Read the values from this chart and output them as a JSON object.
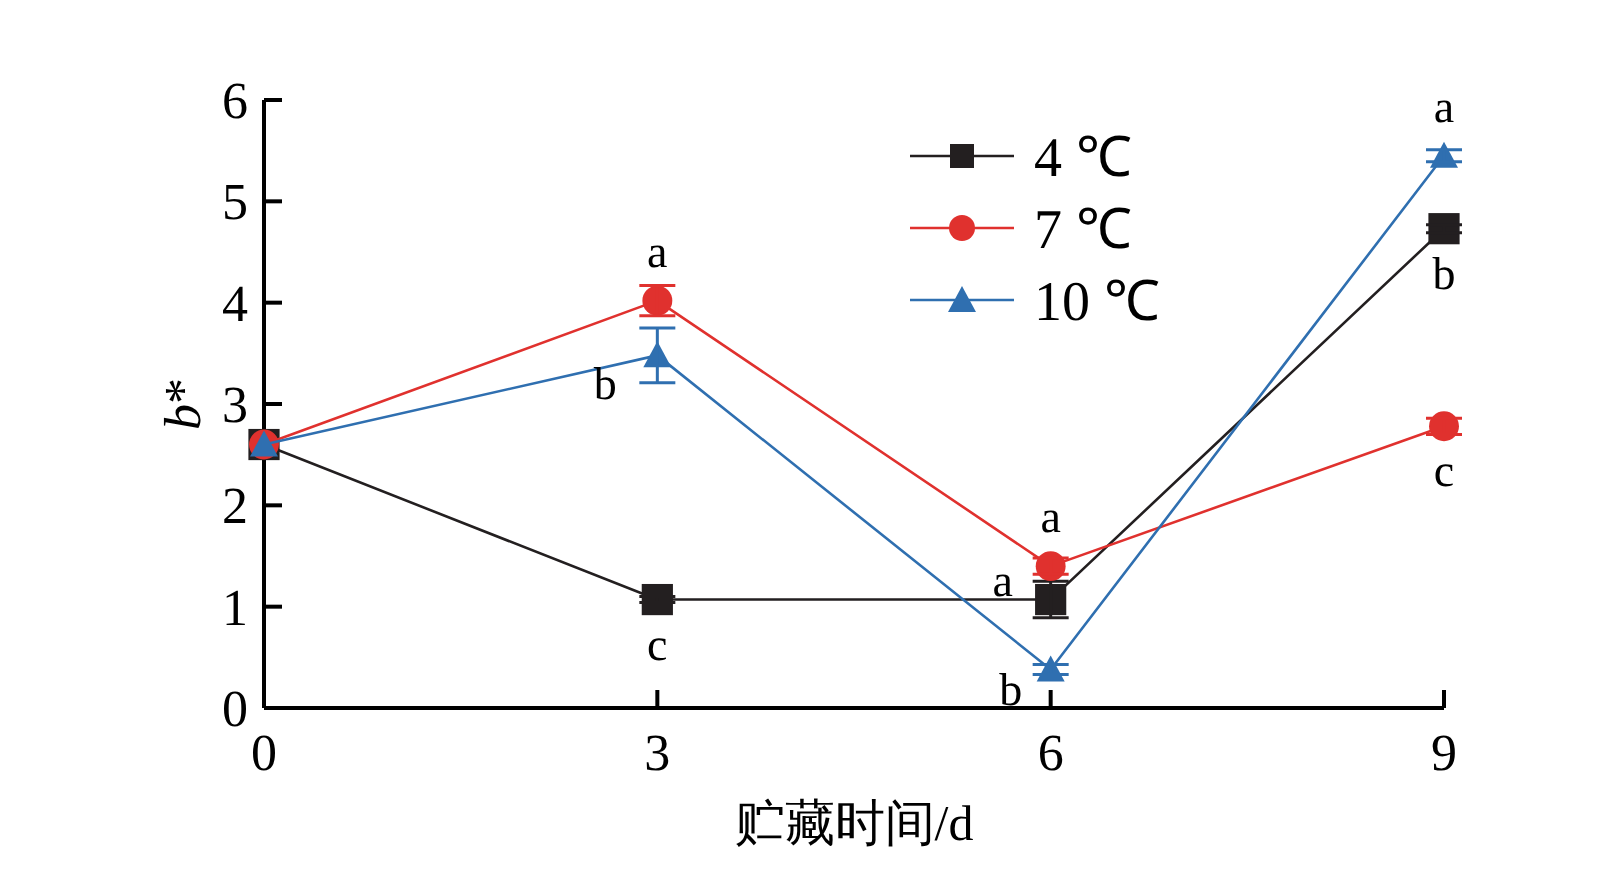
{
  "chart_data": {
    "type": "line",
    "xlabel": "贮藏时间/d",
    "ylabel": "b*",
    "x": [
      0,
      3,
      6,
      9
    ],
    "xlim": [
      0,
      9
    ],
    "xticks": [
      0,
      3,
      6,
      9
    ],
    "ylim": [
      0,
      6
    ],
    "yticks": [
      0,
      1,
      2,
      3,
      4,
      5,
      6
    ],
    "legend": "top right",
    "grid": false,
    "series": [
      {
        "name": "4 ℃",
        "color": "#231f20",
        "marker": "square",
        "values": [
          2.6,
          1.07,
          1.07,
          4.73
        ],
        "errors": [
          null,
          0.03,
          0.18,
          0.04
        ]
      },
      {
        "name": "7 ℃",
        "color": "#e0312e",
        "marker": "circle",
        "values": [
          2.6,
          4.02,
          1.4,
          2.78
        ],
        "errors": [
          null,
          0.15,
          0.08,
          0.08
        ]
      },
      {
        "name": "10 ℃",
        "color": "#2f6fb0",
        "marker": "triangle",
        "values": [
          2.6,
          3.48,
          0.38,
          5.45
        ],
        "errors": [
          null,
          0.27,
          0.05,
          0.06
        ]
      }
    ],
    "annotations": [
      {
        "text": "a",
        "x": 3,
        "y": 4.02
      },
      {
        "text": "b",
        "x": 3,
        "y": 3.48
      },
      {
        "text": "c",
        "x": 3,
        "y": 1.07
      },
      {
        "text": "a",
        "x": 6,
        "y": 1.4
      },
      {
        "text": "a",
        "x": 6,
        "y": 1.07
      },
      {
        "text": "b",
        "x": 6,
        "y": 0.38
      },
      {
        "text": "a",
        "x": 9,
        "y": 5.45
      },
      {
        "text": "b",
        "x": 9,
        "y": 4.73
      },
      {
        "text": "c",
        "x": 9,
        "y": 2.78
      }
    ]
  }
}
